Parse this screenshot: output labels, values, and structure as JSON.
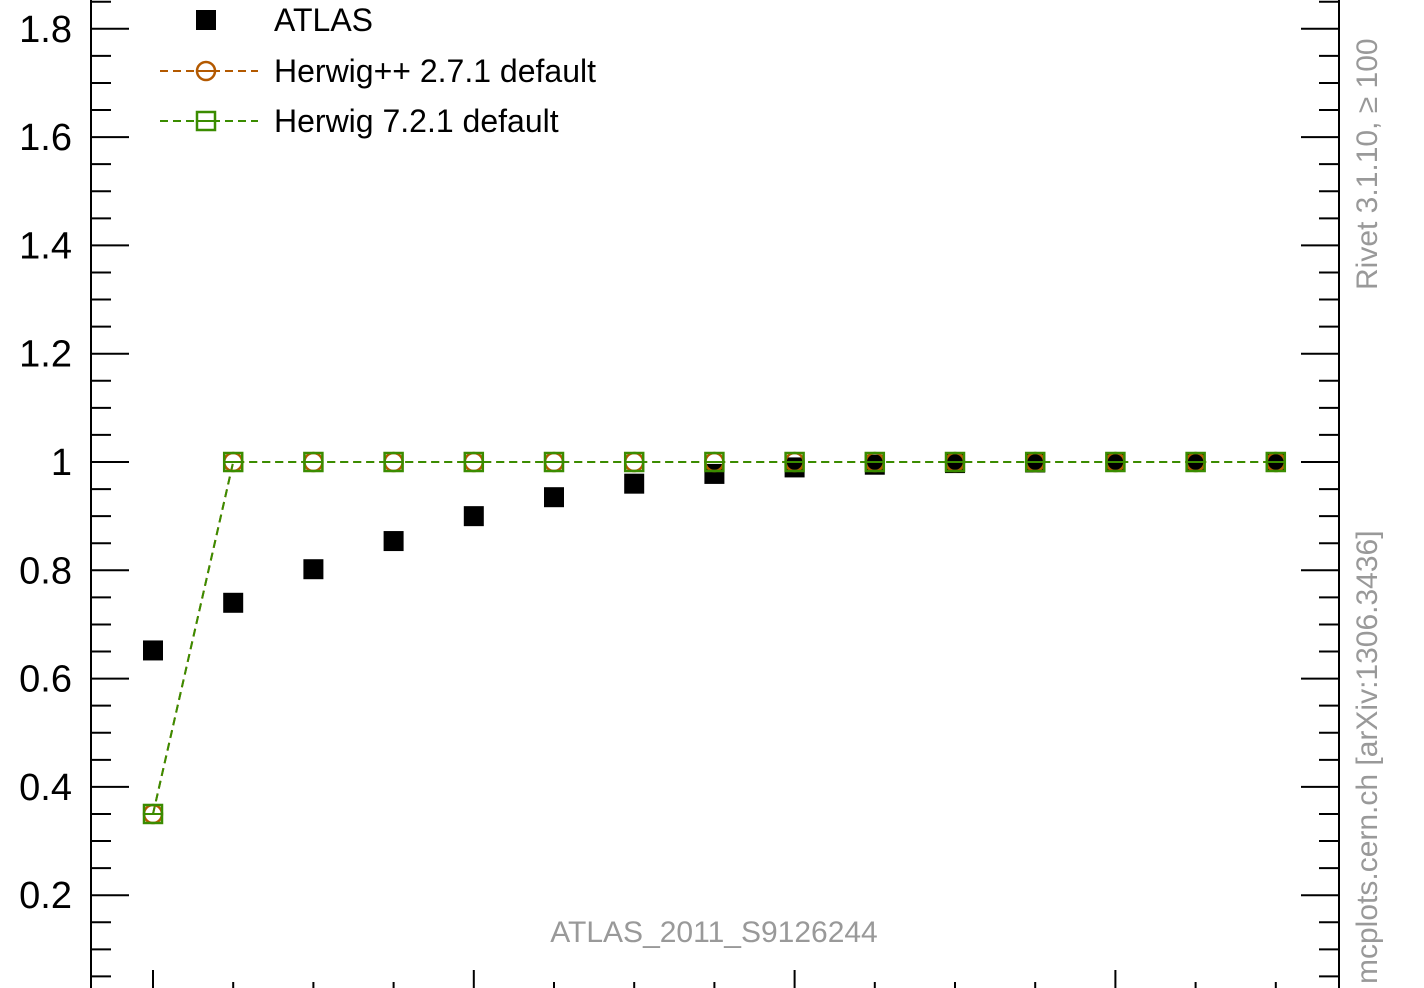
{
  "chart_data": {
    "type": "scatter",
    "x": [
      1,
      2,
      3,
      4,
      5,
      6,
      7,
      8,
      9,
      10,
      11,
      12,
      13,
      14,
      15
    ],
    "series": [
      {
        "name": "ATLAS",
        "marker": "filled-square",
        "color": "#000000",
        "values": [
          0.652,
          0.74,
          0.802,
          0.854,
          0.9,
          0.935,
          0.96,
          0.978,
          0.99,
          0.995,
          0.998,
          0.999,
          1.0,
          1.0,
          1.0
        ]
      },
      {
        "name": "Herwig++ 2.7.1 default",
        "marker": "open-circle",
        "line": "dashed",
        "color": "#b35900",
        "values": [
          0.35,
          1.0,
          1.0,
          1.0,
          1.0,
          1.0,
          1.0,
          1.0,
          1.0,
          1.0,
          1.0,
          1.0,
          1.0,
          1.0,
          1.0
        ]
      },
      {
        "name": "Herwig 7.2.1 default",
        "marker": "open-square",
        "line": "dashed",
        "color": "#3a8c00",
        "values": [
          0.35,
          1.0,
          1.0,
          1.0,
          1.0,
          1.0,
          1.0,
          1.0,
          1.0,
          1.0,
          1.0,
          1.0,
          1.0,
          1.0,
          1.0
        ]
      }
    ],
    "yticks": [
      "0.2",
      "0.4",
      "0.6",
      "0.8",
      "1",
      "1.2",
      "1.4",
      "1.6",
      "1.8"
    ],
    "legend_position": "top-left",
    "annotation": "ATLAS_2011_S9126244",
    "side_text_top": "Rivet 3.1.10, ≥ 100",
    "side_text_bottom": "mcplots.cern.ch [arXiv:1306.3436]"
  }
}
